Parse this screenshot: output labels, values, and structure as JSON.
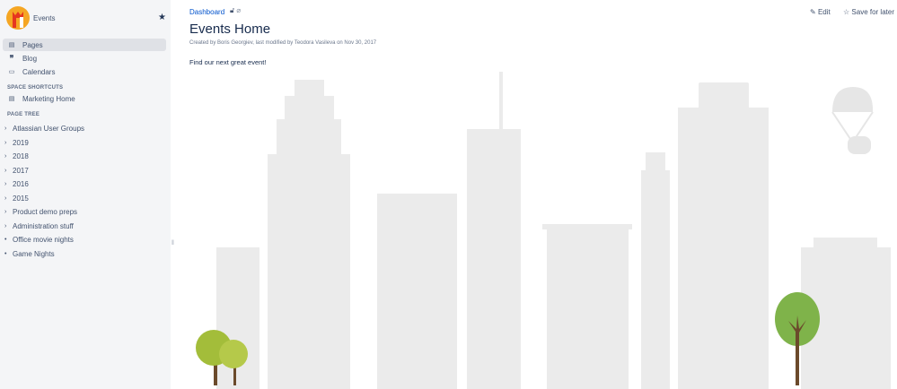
{
  "sidebar": {
    "space_name": "Events",
    "nav": [
      {
        "label": "Pages",
        "icon": "page-icon"
      },
      {
        "label": "Blog",
        "icon": "quote-icon"
      },
      {
        "label": "Calendars",
        "icon": "calendar-icon"
      }
    ],
    "shortcuts_header": "SPACE SHORTCUTS",
    "shortcuts": [
      {
        "label": "Marketing Home",
        "icon": "page-icon"
      }
    ],
    "tree_header": "PAGE TREE",
    "tree": [
      {
        "label": "Atlassian User Groups",
        "expandable": true
      },
      {
        "label": "2019",
        "expandable": true
      },
      {
        "label": "2018",
        "expandable": true
      },
      {
        "label": "2017",
        "expandable": true
      },
      {
        "label": "2016",
        "expandable": true
      },
      {
        "label": "2015",
        "expandable": true
      },
      {
        "label": "Product demo preps",
        "expandable": true
      },
      {
        "label": "Administration stuff",
        "expandable": true
      },
      {
        "label": "Office movie nights",
        "expandable": false
      },
      {
        "label": "Game Nights",
        "expandable": false
      }
    ]
  },
  "page": {
    "breadcrumb": "Dashboard",
    "title": "Events Home",
    "meta": "Created by Boris Georgiev, last modified by Teodora Vasileva on Nov 30, 2017",
    "body": "Find our next great event!",
    "edit_label": "Edit",
    "save_label": "Save for later"
  },
  "colors": {
    "accent": "#0052cc",
    "sidebar_bg": "#f4f5f7",
    "building": "#ebebeb"
  }
}
